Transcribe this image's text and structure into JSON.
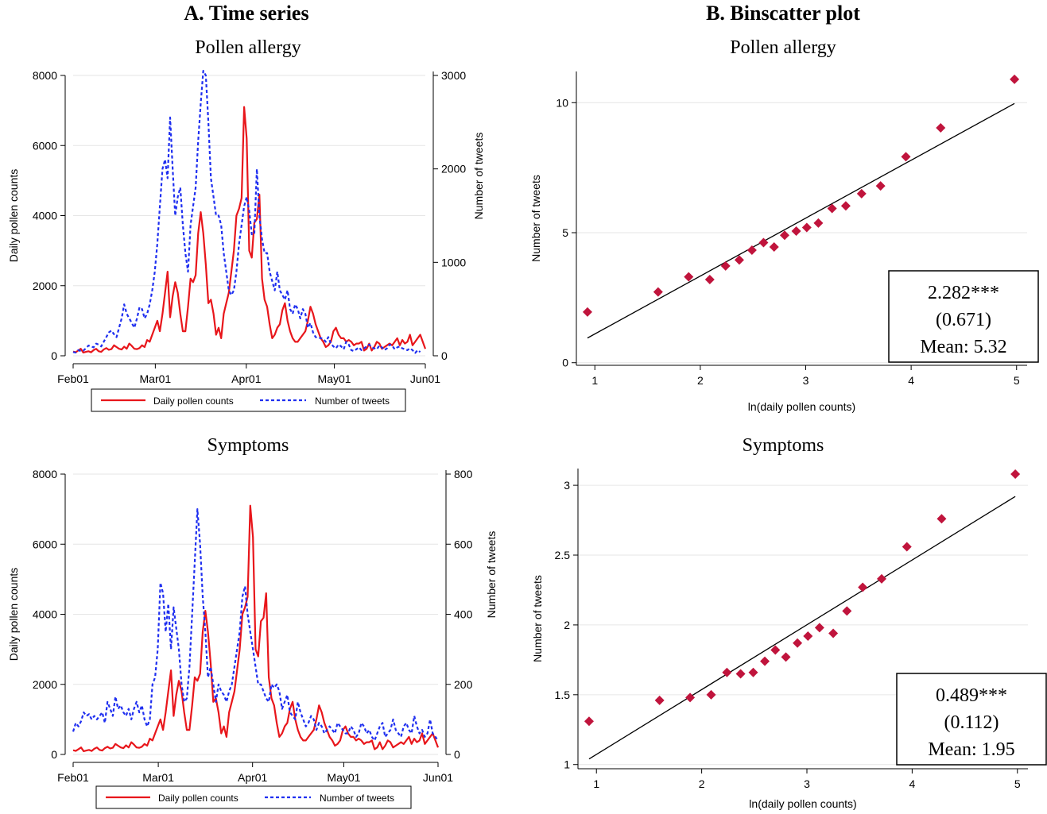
{
  "panel_headers": {
    "a": "A.   Time series",
    "b": "B.   Binscatter plot"
  },
  "colors": {
    "pollen_line": "#e8161b",
    "tweets_line": "#1f2ff0",
    "scatter_marker": "#c0143c",
    "fit_line": "#000000",
    "grid": "#e6e6e6"
  },
  "chart_data": [
    {
      "type": "line",
      "title": "Pollen allergy",
      "xlabel": "",
      "ylabel": "Daily pollen counts",
      "y2label": "Number of tweets",
      "x_ticks": [
        "Feb01",
        "Mar01",
        "Apr01",
        "May01",
        "Jun01"
      ],
      "ylim": [
        0,
        8000
      ],
      "y_ticks": [
        0,
        2000,
        4000,
        6000,
        8000
      ],
      "y2lim": [
        0,
        3000
      ],
      "y2_ticks": [
        0,
        1000,
        2000,
        3000
      ],
      "grid": true,
      "legend_position": "bottom",
      "series": [
        {
          "name": "Daily pollen counts",
          "axis": "left",
          "style": "solid",
          "values": [
            120,
            100,
            150,
            200,
            90,
            110,
            130,
            100,
            160,
            200,
            130,
            110,
            180,
            220,
            170,
            190,
            300,
            250,
            200,
            180,
            260,
            200,
            350,
            280,
            200,
            190,
            220,
            300,
            250,
            450,
            400,
            600,
            800,
            1000,
            700,
            1200,
            1800,
            2400,
            1100,
            1700,
            2100,
            1800,
            1200,
            700,
            700,
            1400,
            2200,
            2100,
            2300,
            3500,
            4100,
            3500,
            2600,
            1500,
            1600,
            1200,
            600,
            800,
            500,
            1200,
            1500,
            1800,
            2400,
            3000,
            4000,
            4200,
            4500,
            7100,
            6200,
            3000,
            2800,
            3800,
            3900,
            4600,
            2200,
            1600,
            1400,
            900,
            500,
            600,
            800,
            900,
            1300,
            1500,
            1000,
            700,
            500,
            400,
            400,
            500,
            600,
            700,
            1000,
            1400,
            1200,
            900,
            700,
            500,
            400,
            250,
            300,
            400,
            700,
            800,
            600,
            500,
            500,
            400,
            450,
            400,
            300,
            350,
            350,
            400,
            150,
            200,
            350,
            150,
            250,
            400,
            350,
            200,
            250,
            300,
            350,
            300,
            400,
            500,
            300,
            450,
            350,
            400,
            600,
            300,
            400,
            500,
            600,
            400,
            200
          ]
        },
        {
          "name": "Number of tweets",
          "axis": "right",
          "style": "dashed",
          "values": [
            40,
            35,
            60,
            50,
            55,
            80,
            110,
            100,
            90,
            130,
            120,
            100,
            150,
            200,
            250,
            270,
            230,
            200,
            300,
            400,
            550,
            450,
            400,
            350,
            300,
            400,
            520,
            500,
            400,
            450,
            550,
            700,
            900,
            1200,
            1600,
            2000,
            2100,
            1900,
            2550,
            2000,
            1500,
            1700,
            1800,
            1400,
            1100,
            900,
            1400,
            1600,
            1800,
            2300,
            2700,
            3050,
            3000,
            2500,
            1900,
            1700,
            1500,
            1500,
            1400,
            1100,
            900,
            700,
            650,
            700,
            900,
            1200,
            1400,
            1600,
            1700,
            1550,
            1300,
            1300,
            2000,
            1500,
            1250,
            1100,
            1100,
            900,
            800,
            700,
            900,
            700,
            650,
            600,
            700,
            500,
            450,
            550,
            500,
            400,
            500,
            450,
            300,
            350,
            250,
            200,
            190,
            190,
            180,
            150,
            200,
            130,
            100,
            80,
            120,
            100,
            70,
            150,
            120,
            60,
            50,
            70,
            90,
            60,
            80,
            100,
            120,
            90,
            80,
            70,
            110,
            90,
            60,
            80,
            120,
            110,
            70,
            90,
            100,
            80,
            70,
            60,
            80,
            60,
            30,
            60,
            40
          ]
        }
      ]
    },
    {
      "type": "scatter",
      "title": "Pollen allergy",
      "xlabel": "ln(daily pollen counts)",
      "ylabel": "Number of tweets",
      "xlim": [
        0.9,
        5.1
      ],
      "ylim": [
        -0.1,
        11.2
      ],
      "x_ticks": [
        1,
        2,
        3,
        4,
        5
      ],
      "y_ticks": [
        0,
        5,
        10
      ],
      "grid": true,
      "x": [
        0.93,
        1.6,
        1.89,
        2.09,
        2.24,
        2.37,
        2.49,
        2.6,
        2.7,
        2.8,
        2.91,
        3.01,
        3.12,
        3.25,
        3.38,
        3.53,
        3.71,
        3.95,
        4.28,
        4.98
      ],
      "y": [
        1.95,
        2.72,
        3.3,
        3.2,
        3.72,
        3.95,
        4.33,
        4.62,
        4.45,
        4.9,
        5.06,
        5.2,
        5.37,
        5.93,
        6.03,
        6.5,
        6.8,
        7.92,
        9.03,
        10.9
      ],
      "fit_line": [
        [
          0.93,
          0.95
        ],
        [
          4.98,
          9.97
        ]
      ],
      "annotation": {
        "coef": "2.282***",
        "se": "(0.671)",
        "mean": "Mean: 5.32"
      }
    },
    {
      "type": "line",
      "title": "Symptoms",
      "xlabel": "",
      "ylabel": "Daily pollen counts",
      "y2label": "Number of tweets",
      "x_ticks": [
        "Feb01",
        "Mar01",
        "Apr01",
        "May01",
        "Jun01"
      ],
      "ylim": [
        0,
        8000
      ],
      "y_ticks": [
        0,
        2000,
        4000,
        6000,
        8000
      ],
      "y2lim": [
        0,
        800
      ],
      "y2_ticks": [
        0,
        200,
        400,
        600,
        800
      ],
      "grid": true,
      "legend_position": "bottom",
      "series": [
        {
          "name": "Daily pollen counts",
          "axis": "left",
          "style": "solid",
          "values": [
            120,
            100,
            150,
            200,
            90,
            110,
            130,
            100,
            160,
            200,
            130,
            110,
            180,
            220,
            170,
            190,
            300,
            250,
            200,
            180,
            260,
            200,
            350,
            280,
            200,
            190,
            220,
            300,
            250,
            450,
            400,
            600,
            800,
            1000,
            700,
            1200,
            1800,
            2400,
            1100,
            1700,
            2100,
            1800,
            1200,
            700,
            700,
            1400,
            2200,
            2100,
            2300,
            3500,
            4100,
            3500,
            2600,
            1500,
            1600,
            1200,
            600,
            800,
            500,
            1200,
            1500,
            1800,
            2400,
            3000,
            4000,
            4200,
            4500,
            7100,
            6200,
            3000,
            2800,
            3800,
            3900,
            4600,
            2200,
            1600,
            1400,
            900,
            500,
            600,
            800,
            900,
            1300,
            1500,
            1000,
            700,
            500,
            400,
            400,
            500,
            600,
            700,
            1000,
            1400,
            1200,
            900,
            700,
            500,
            400,
            250,
            300,
            400,
            700,
            800,
            600,
            500,
            500,
            400,
            450,
            400,
            300,
            350,
            350,
            400,
            150,
            200,
            350,
            150,
            250,
            400,
            350,
            200,
            250,
            300,
            350,
            300,
            400,
            500,
            300,
            450,
            350,
            400,
            600,
            300,
            400,
            500,
            600,
            400,
            200
          ]
        },
        {
          "name": "Number of tweets",
          "axis": "right",
          "style": "dashed",
          "values": [
            65,
            90,
            80,
            95,
            120,
            110,
            115,
            100,
            110,
            100,
            110,
            120,
            90,
            150,
            130,
            110,
            165,
            130,
            140,
            120,
            110,
            130,
            100,
            130,
            150,
            120,
            140,
            100,
            80,
            100,
            200,
            220,
            300,
            490,
            460,
            350,
            430,
            300,
            420,
            360,
            300,
            200,
            150,
            160,
            250,
            400,
            550,
            700,
            600,
            450,
            350,
            220,
            250,
            200,
            150,
            200,
            180,
            170,
            150,
            180,
            200,
            250,
            300,
            350,
            450,
            480,
            400,
            350,
            300,
            250,
            200,
            200,
            180,
            160,
            150,
            200,
            190,
            200,
            180,
            130,
            150,
            170,
            120,
            110,
            100,
            150,
            120,
            100,
            80,
            90,
            110,
            100,
            70,
            90,
            80,
            60,
            70,
            80,
            70,
            60,
            90,
            80,
            70,
            60,
            60,
            80,
            70,
            50,
            60,
            90,
            80,
            60,
            70,
            50,
            40,
            60,
            80,
            90,
            50,
            60,
            70,
            100,
            70,
            60,
            50,
            80,
            90,
            70,
            60,
            110,
            80,
            60,
            70,
            50,
            60,
            100,
            60,
            50,
            40
          ]
        }
      ]
    },
    {
      "type": "scatter",
      "title": "Symptoms",
      "xlabel": "ln(daily pollen counts)",
      "ylabel": "Number of tweets",
      "xlim": [
        0.9,
        5.1
      ],
      "ylim": [
        0.97,
        3.12
      ],
      "x_ticks": [
        1,
        2,
        3,
        4,
        5
      ],
      "y_ticks": [
        1,
        1.5,
        2,
        2.5,
        3
      ],
      "grid": true,
      "x": [
        0.93,
        1.6,
        1.89,
        2.09,
        2.24,
        2.37,
        2.49,
        2.6,
        2.7,
        2.8,
        2.91,
        3.01,
        3.12,
        3.25,
        3.38,
        3.53,
        3.71,
        3.95,
        4.28,
        4.98
      ],
      "y": [
        1.31,
        1.46,
        1.48,
        1.5,
        1.66,
        1.65,
        1.66,
        1.74,
        1.82,
        1.77,
        1.87,
        1.92,
        1.98,
        1.94,
        2.1,
        2.27,
        2.33,
        2.56,
        2.76,
        3.08
      ],
      "fit_line": [
        [
          0.93,
          1.04
        ],
        [
          4.98,
          2.92
        ]
      ],
      "annotation": {
        "coef": "0.489***",
        "se": "(0.112)",
        "mean": "Mean: 1.95"
      }
    }
  ]
}
